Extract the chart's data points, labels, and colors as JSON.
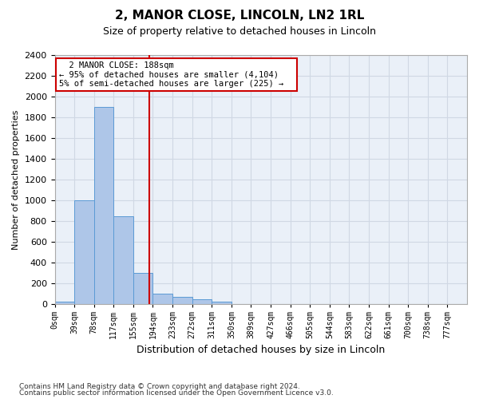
{
  "title": "2, MANOR CLOSE, LINCOLN, LN2 1RL",
  "subtitle": "Size of property relative to detached houses in Lincoln",
  "xlabel": "Distribution of detached houses by size in Lincoln",
  "ylabel": "Number of detached properties",
  "bin_labels": [
    "0sqm",
    "39sqm",
    "78sqm",
    "117sqm",
    "155sqm",
    "194sqm",
    "233sqm",
    "272sqm",
    "311sqm",
    "350sqm",
    "389sqm",
    "427sqm",
    "466sqm",
    "505sqm",
    "544sqm",
    "583sqm",
    "622sqm",
    "661sqm",
    "700sqm",
    "738sqm",
    "777sqm"
  ],
  "bar_heights": [
    25,
    1000,
    1900,
    850,
    300,
    100,
    75,
    50,
    30,
    5,
    0,
    0,
    0,
    0,
    0,
    0,
    0,
    0,
    0,
    0,
    0
  ],
  "bar_color": "#aec6e8",
  "bar_edge_color": "#5b9bd5",
  "grid_color": "#d0d8e4",
  "background_color": "#eaf0f8",
  "property_label": "2 MANOR CLOSE: 188sqm",
  "annotation_line1": "← 95% of detached houses are smaller (4,104)",
  "annotation_line2": "5% of semi-detached houses are larger (225) →",
  "vline_color": "#cc0000",
  "annotation_box_color": "#ffffff",
  "annotation_box_edge": "#cc0000",
  "ylim": [
    0,
    2400
  ],
  "yticks": [
    0,
    200,
    400,
    600,
    800,
    1000,
    1200,
    1400,
    1600,
    1800,
    2000,
    2200,
    2400
  ],
  "footnote1": "Contains HM Land Registry data © Crown copyright and database right 2024.",
  "footnote2": "Contains public sector information licensed under the Open Government Licence v3.0.",
  "bin_width": 39,
  "vline_position": 4.82
}
